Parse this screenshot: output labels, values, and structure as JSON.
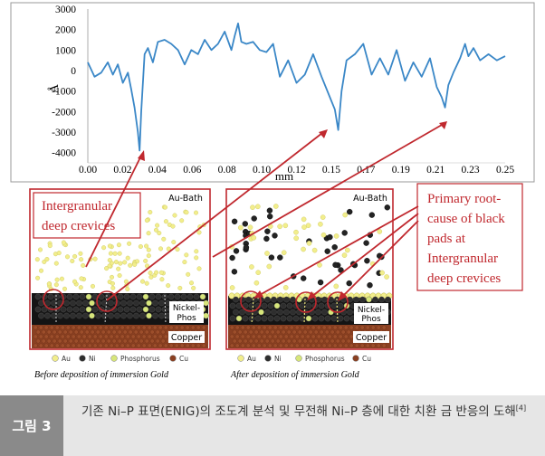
{
  "chart_data": {
    "type": "line",
    "xlabel": "mm",
    "ylabel": "Å",
    "xlim": [
      0.0,
      0.25
    ],
    "ylim": [
      -4500,
      3000
    ],
    "x_ticks": [
      "0.00",
      "0.02",
      "0.04",
      "0.06",
      "0.08",
      "0.10",
      "0.12",
      "0.15",
      "0.17",
      "0.19",
      "0.21",
      "0.23",
      "0.25"
    ],
    "y_ticks": [
      "3000",
      "2000",
      "1000",
      "0",
      "-1000",
      "-2000",
      "-3000",
      "-4000"
    ],
    "series": [
      {
        "color": "#3a87c7",
        "x": [
          0.0,
          0.004,
          0.008,
          0.012,
          0.015,
          0.018,
          0.021,
          0.024,
          0.026,
          0.028,
          0.03,
          0.031,
          0.032,
          0.034,
          0.036,
          0.039,
          0.042,
          0.046,
          0.05,
          0.054,
          0.058,
          0.062,
          0.066,
          0.07,
          0.074,
          0.078,
          0.082,
          0.086,
          0.088,
          0.09,
          0.092,
          0.095,
          0.099,
          0.103,
          0.107,
          0.111,
          0.115,
          0.12,
          0.125,
          0.13,
          0.135,
          0.14,
          0.145,
          0.148,
          0.15,
          0.152,
          0.155,
          0.16,
          0.165,
          0.17,
          0.175,
          0.18,
          0.185,
          0.19,
          0.195,
          0.2,
          0.205,
          0.209,
          0.212,
          0.214,
          0.216,
          0.219,
          0.223,
          0.226,
          0.228,
          0.231,
          0.235,
          0.24,
          0.245,
          0.25
        ],
        "y": [
          400,
          -300,
          -100,
          400,
          -200,
          300,
          -600,
          -100,
          -900,
          -1800,
          -3000,
          -3900,
          -2000,
          800,
          1100,
          400,
          1400,
          1500,
          1300,
          1000,
          300,
          1000,
          800,
          1500,
          1000,
          1300,
          1900,
          1000,
          1700,
          2300,
          1400,
          1300,
          1400,
          1000,
          900,
          1300,
          -300,
          500,
          -600,
          -200,
          800,
          -300,
          -1300,
          -1900,
          -2900,
          -1000,
          500,
          800,
          1300,
          -200,
          600,
          -200,
          1000,
          -500,
          400,
          -300,
          600,
          -800,
          -1300,
          -1800,
          -700,
          -100,
          600,
          1300,
          700,
          1100,
          500,
          800,
          500,
          700
        ]
      }
    ]
  },
  "diagram": {
    "annotation_left": [
      "Intergranular",
      "deep crevices"
    ],
    "annotation_right": [
      "Primary root-",
      "cause of black",
      "pads at",
      "Intergranular",
      "deep crevices"
    ],
    "left_panel": {
      "bath_label": "Au-Bath",
      "layer1": [
        "Nickel-",
        "Phos"
      ],
      "layer2": "Copper",
      "caption": "Before deposition of immersion Gold"
    },
    "right_panel": {
      "bath_label": "Au-Bath",
      "layer1": [
        "Nickel-",
        "Phos"
      ],
      "layer2": "Copper",
      "caption": "After deposition of immersion Gold"
    },
    "legend": [
      "Au",
      "Ni",
      "Phosphorus",
      "Cu"
    ],
    "colors": {
      "annotation": "#c0282e",
      "gold": "#f2ee8c",
      "nickel": "#232323",
      "phosphorus": "#d7e67a",
      "copper": "#8a4022",
      "trace": "#3a87c7"
    }
  },
  "figure_caption": {
    "tag": "그림 3",
    "text": "기존 Ni–P 표면(ENIG)의 조도계 분석 및 무전해 Ni–P 층에 대한 치환 금 반응의 도해",
    "ref": "[4]"
  }
}
